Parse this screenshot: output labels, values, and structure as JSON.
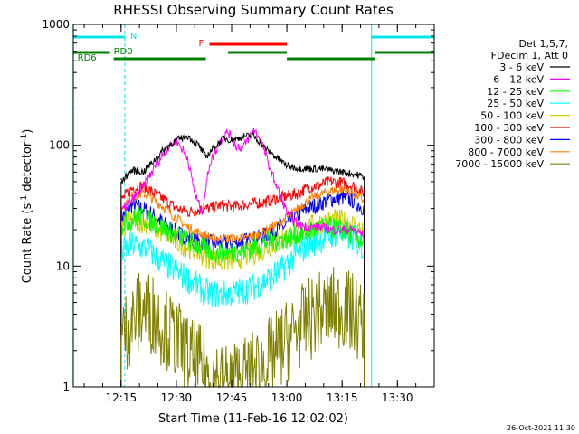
{
  "chart_data": {
    "type": "line",
    "title": "RHESSI Observing Summary Count Rates",
    "xlabel": "Start Time (11-Feb-16 12:02:02)",
    "ylabel_main": "Count Rate (s",
    "ylabel_sup1": "-1",
    "ylabel_mid": " detector",
    "ylabel_sup2": "-1",
    "ylabel_end": ")",
    "y_scale": "log",
    "ylim": [
      1,
      1000
    ],
    "xlim": [
      "12:02:02",
      "13:40:00"
    ],
    "x_ticks": [
      "12:15",
      "12:30",
      "12:45",
      "13:00",
      "13:15",
      "13:30"
    ],
    "y_ticks": [
      "1",
      "10",
      "100",
      "1000"
    ],
    "legend_header": [
      "Det 1,5,7,",
      "FDecim 1, Att 0"
    ],
    "legend_position": "right",
    "timestamp": "26-Oct-2021 11:30",
    "flags": [
      {
        "name": "N",
        "color": "#00e5e5",
        "segments": [
          [
            "12:02",
            "12:16"
          ],
          [
            "13:23",
            "13:40"
          ]
        ]
      },
      {
        "name": "F",
        "color": "#ff0000",
        "segments": [
          [
            "12:39",
            "13:00"
          ]
        ]
      },
      {
        "name": "RD0",
        "color": "#008000",
        "segments": [
          [
            "12:02",
            "12:12"
          ],
          [
            "12:44",
            "13:00"
          ],
          [
            "13:24",
            "13:40"
          ]
        ]
      },
      {
        "name": "RD6",
        "color": "#008000",
        "segments": [
          [
            "12:13",
            "12:38"
          ],
          [
            "13:00",
            "13:24"
          ]
        ]
      }
    ],
    "series": [
      {
        "name": "3 - 6 keV",
        "color": "#000000",
        "points": [
          [
            "12:15",
            50
          ],
          [
            "12:18",
            62
          ],
          [
            "12:21",
            60
          ],
          [
            "12:24",
            75
          ],
          [
            "12:27",
            95
          ],
          [
            "12:30",
            110
          ],
          [
            "12:33",
            120
          ],
          [
            "12:36",
            100
          ],
          [
            "12:38",
            80
          ],
          [
            "12:40",
            95
          ],
          [
            "12:43",
            115
          ],
          [
            "12:45",
            110
          ],
          [
            "12:48",
            118
          ],
          [
            "12:51",
            120
          ],
          [
            "12:54",
            95
          ],
          [
            "12:57",
            80
          ],
          [
            "13:00",
            68
          ],
          [
            "13:03",
            65
          ],
          [
            "13:06",
            64
          ],
          [
            "13:09",
            64
          ],
          [
            "13:12",
            62
          ],
          [
            "13:15",
            60
          ],
          [
            "13:18",
            58
          ],
          [
            "13:21",
            55
          ]
        ]
      },
      {
        "name": "6 - 12 keV",
        "color": "#ff00ff",
        "points": [
          [
            "12:15",
            28
          ],
          [
            "12:18",
            35
          ],
          [
            "12:21",
            45
          ],
          [
            "12:24",
            65
          ],
          [
            "12:27",
            90
          ],
          [
            "12:30",
            110
          ],
          [
            "12:33",
            80
          ],
          [
            "12:35",
            40
          ],
          [
            "12:37",
            28
          ],
          [
            "12:39",
            70
          ],
          [
            "12:42",
            110
          ],
          [
            "12:44",
            130
          ],
          [
            "12:46",
            100
          ],
          [
            "12:48",
            95
          ],
          [
            "12:51",
            135
          ],
          [
            "12:53",
            110
          ],
          [
            "12:55",
            70
          ],
          [
            "12:58",
            40
          ],
          [
            "13:00",
            28
          ],
          [
            "13:03",
            22
          ],
          [
            "13:06",
            21
          ],
          [
            "13:09",
            21
          ],
          [
            "13:12",
            20
          ],
          [
            "13:15",
            20
          ],
          [
            "13:18",
            20
          ],
          [
            "13:21",
            18
          ]
        ]
      },
      {
        "name": "12 - 25 keV",
        "color": "#00ff00",
        "points": [
          [
            "12:15",
            22
          ],
          [
            "12:20",
            26
          ],
          [
            "12:25",
            22
          ],
          [
            "12:30",
            18
          ],
          [
            "12:35",
            15
          ],
          [
            "12:40",
            13
          ],
          [
            "12:45",
            13
          ],
          [
            "12:50",
            14
          ],
          [
            "12:55",
            16
          ],
          [
            "13:00",
            17
          ],
          [
            "13:05",
            19
          ],
          [
            "13:10",
            21
          ],
          [
            "13:15",
            20
          ],
          [
            "13:21",
            16
          ]
        ]
      },
      {
        "name": "25 - 50 keV",
        "color": "#00ffff",
        "points": [
          [
            "12:15",
            13
          ],
          [
            "12:18",
            15
          ],
          [
            "12:22",
            14
          ],
          [
            "12:26",
            11
          ],
          [
            "12:30",
            9
          ],
          [
            "12:34",
            7.5
          ],
          [
            "12:38",
            6
          ],
          [
            "12:42",
            5.8
          ],
          [
            "12:46",
            6
          ],
          [
            "12:50",
            6.5
          ],
          [
            "12:54",
            7.5
          ],
          [
            "12:58",
            9
          ],
          [
            "13:02",
            12
          ],
          [
            "13:06",
            15
          ],
          [
            "13:10",
            17
          ],
          [
            "13:14",
            19
          ],
          [
            "13:18",
            17
          ],
          [
            "13:21",
            14
          ]
        ]
      },
      {
        "name": "50 - 100 keV",
        "color": "#cccc00",
        "points": [
          [
            "12:15",
            20
          ],
          [
            "12:18",
            24
          ],
          [
            "12:22",
            23
          ],
          [
            "12:26",
            19
          ],
          [
            "12:30",
            16
          ],
          [
            "12:34",
            14
          ],
          [
            "12:38",
            12
          ],
          [
            "12:42",
            11
          ],
          [
            "12:46",
            11.5
          ],
          [
            "12:50",
            12.5
          ],
          [
            "12:54",
            14
          ],
          [
            "12:58",
            16
          ],
          [
            "13:02",
            19
          ],
          [
            "13:06",
            21
          ],
          [
            "13:10",
            23
          ],
          [
            "13:14",
            24
          ],
          [
            "13:18",
            22
          ],
          [
            "13:21",
            19
          ]
        ]
      },
      {
        "name": "100 - 300 keV",
        "color": "#ff0000",
        "points": [
          [
            "12:15",
            35
          ],
          [
            "12:18",
            44
          ],
          [
            "12:21",
            46
          ],
          [
            "12:24",
            40
          ],
          [
            "12:27",
            35
          ],
          [
            "12:30",
            30
          ],
          [
            "12:33",
            28
          ],
          [
            "12:36",
            29
          ],
          [
            "12:39",
            30
          ],
          [
            "12:42",
            32
          ],
          [
            "12:45",
            31
          ],
          [
            "12:48",
            32
          ],
          [
            "12:51",
            33
          ],
          [
            "12:54",
            34
          ],
          [
            "12:57",
            36
          ],
          [
            "13:00",
            38
          ],
          [
            "13:03",
            40
          ],
          [
            "13:06",
            45
          ],
          [
            "13:09",
            47
          ],
          [
            "13:12",
            50
          ],
          [
            "13:15",
            49
          ],
          [
            "13:18",
            46
          ],
          [
            "13:21",
            40
          ]
        ]
      },
      {
        "name": "300 - 800 keV",
        "color": "#0000ff",
        "points": [
          [
            "12:15",
            25
          ],
          [
            "12:18",
            32
          ],
          [
            "12:21",
            30
          ],
          [
            "12:24",
            26
          ],
          [
            "12:27",
            22
          ],
          [
            "12:30",
            19
          ],
          [
            "12:33",
            17
          ],
          [
            "12:36",
            16
          ],
          [
            "12:40",
            15.5
          ],
          [
            "12:44",
            15.5
          ],
          [
            "12:48",
            16
          ],
          [
            "12:52",
            17
          ],
          [
            "12:56",
            19
          ],
          [
            "13:00",
            22
          ],
          [
            "13:04",
            28
          ],
          [
            "13:08",
            32
          ],
          [
            "13:12",
            36
          ],
          [
            "13:15",
            37
          ],
          [
            "13:18",
            35
          ],
          [
            "13:21",
            30
          ]
        ]
      },
      {
        "name": "800 - 7000 keV",
        "color": "#ff8000",
        "points": [
          [
            "12:15",
            30
          ],
          [
            "12:18",
            38
          ],
          [
            "12:21",
            40
          ],
          [
            "12:24",
            35
          ],
          [
            "12:27",
            30
          ],
          [
            "12:30",
            25
          ],
          [
            "12:33",
            21
          ],
          [
            "12:36",
            19
          ],
          [
            "12:40",
            17
          ],
          [
            "12:44",
            17
          ],
          [
            "12:48",
            17
          ],
          [
            "12:52",
            18
          ],
          [
            "12:56",
            21
          ],
          [
            "13:00",
            25
          ],
          [
            "13:04",
            32
          ],
          [
            "13:08",
            38
          ],
          [
            "13:12",
            42
          ],
          [
            "13:15",
            43
          ],
          [
            "13:18",
            40
          ],
          [
            "13:21",
            35
          ]
        ]
      },
      {
        "name": "7000 - 15000 keV",
        "color": "#808000",
        "points": [
          [
            "12:15",
            2.5
          ],
          [
            "12:18",
            3.5
          ],
          [
            "12:21",
            4.5
          ],
          [
            "12:24",
            4
          ],
          [
            "12:27",
            3
          ],
          [
            "12:30",
            2.5
          ],
          [
            "12:33",
            1.8
          ],
          [
            "12:36",
            1.5
          ],
          [
            "12:40",
            1.2
          ],
          [
            "12:44",
            1.1
          ],
          [
            "12:48",
            1.2
          ],
          [
            "12:52",
            1.4
          ],
          [
            "12:56",
            1.8
          ],
          [
            "13:00",
            2.4
          ],
          [
            "13:04",
            3.2
          ],
          [
            "13:08",
            4
          ],
          [
            "13:12",
            4.5
          ],
          [
            "13:15",
            4.5
          ],
          [
            "13:18",
            4
          ],
          [
            "13:21",
            3.2
          ]
        ]
      }
    ]
  }
}
